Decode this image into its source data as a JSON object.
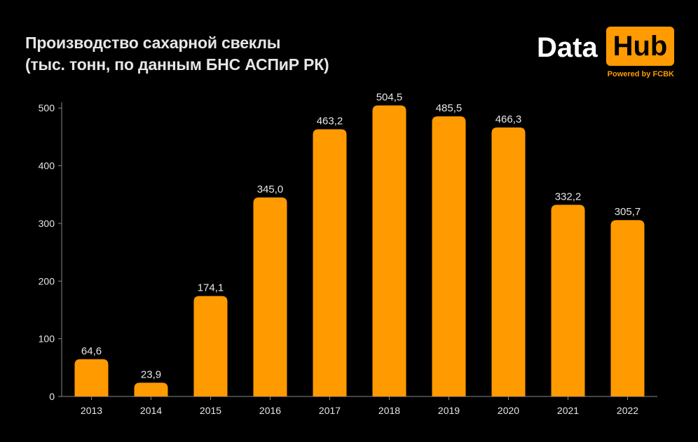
{
  "header": {
    "title_line1": "Производство сахарной свеклы",
    "title_line2": "(тыс. тонн, по данным БНС АСПиР РК)"
  },
  "logo": {
    "data_text": "Data",
    "hub_text": "Hub",
    "powered_text": "Powered by FCBK"
  },
  "colors": {
    "background": "#000000",
    "bar": "#ff9a00",
    "text": "#e6e6e6",
    "axis": "#888888"
  },
  "chart_data": {
    "type": "bar",
    "title": "Производство сахарной свеклы (тыс. тонн, по данным БНС АСПиР РК)",
    "categories": [
      "2013",
      "2014",
      "2015",
      "2016",
      "2017",
      "2018",
      "2019",
      "2020",
      "2021",
      "2022"
    ],
    "values": [
      64.6,
      23.9,
      174.1,
      345.0,
      463.2,
      504.5,
      485.5,
      466.3,
      332.2,
      305.7
    ],
    "value_labels": [
      "64,6",
      "23,9",
      "174,1",
      "345,0",
      "463,2",
      "504,5",
      "485,5",
      "466,3",
      "332,2",
      "305,7"
    ],
    "yticks": [
      "0",
      "100",
      "200",
      "300",
      "400",
      "500"
    ],
    "ylim": [
      0,
      510
    ],
    "grid": false,
    "legend": "none"
  }
}
